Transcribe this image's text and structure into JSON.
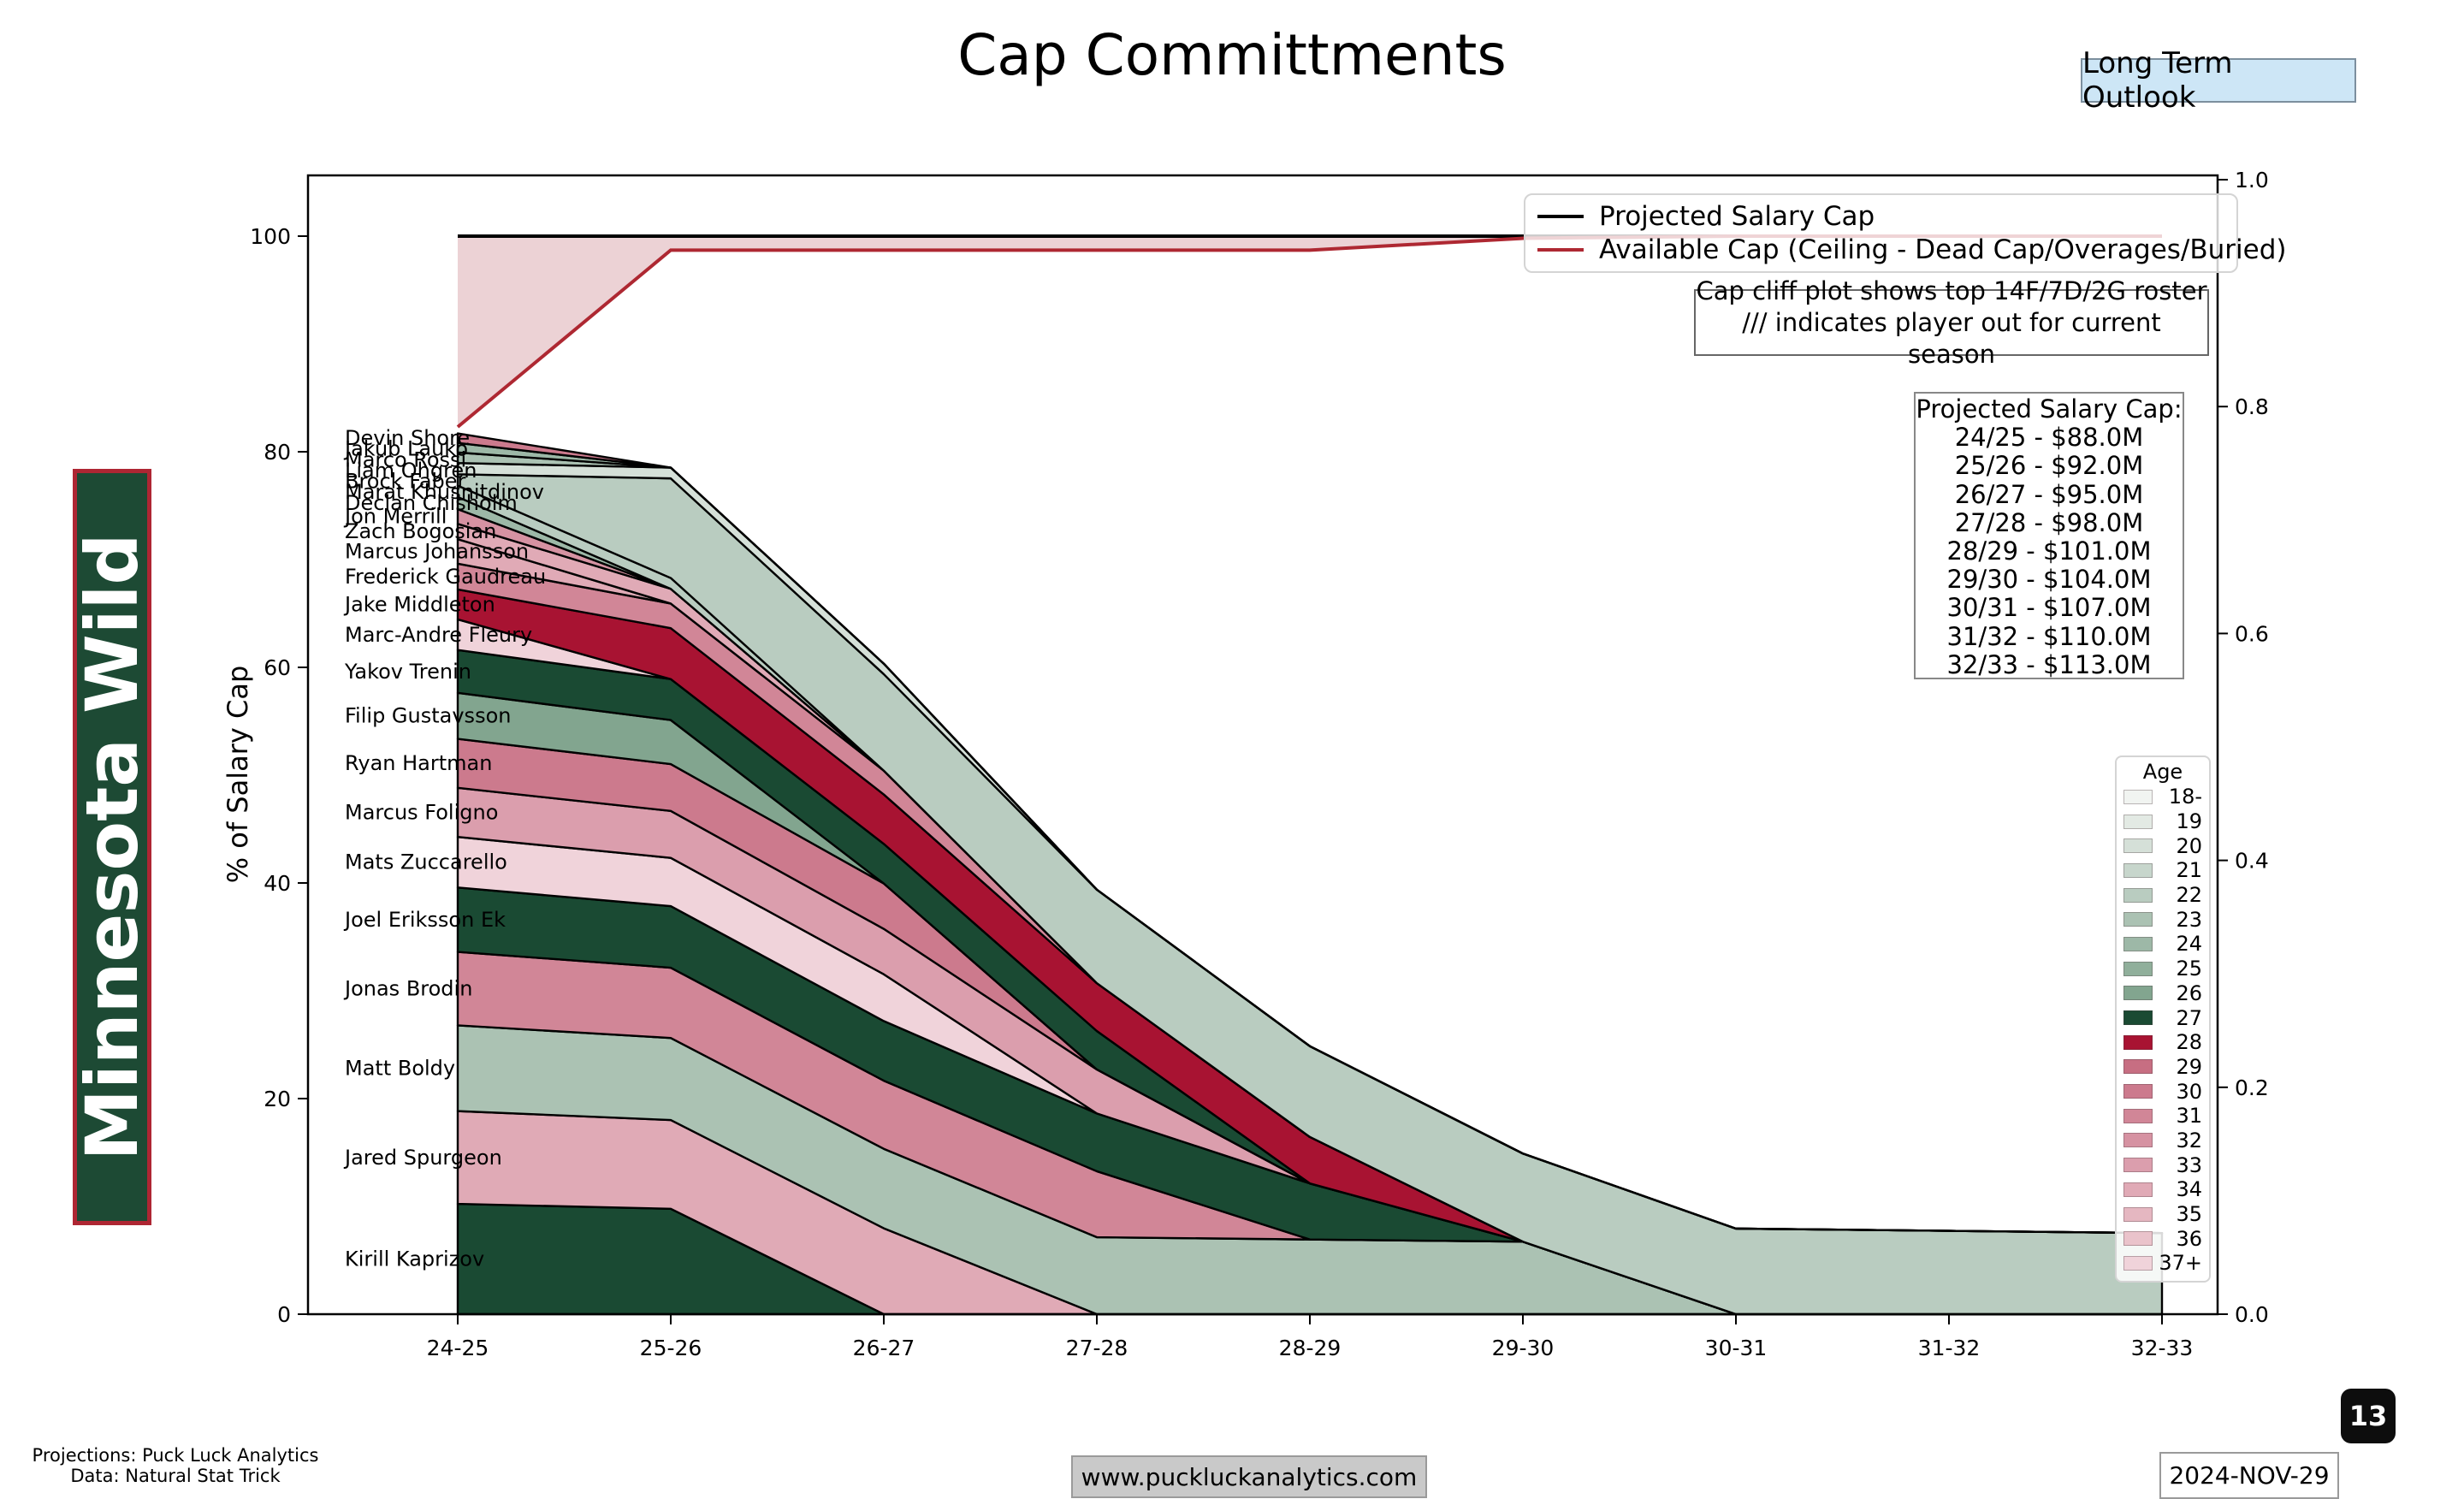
{
  "header": {
    "title": "Cap Committments",
    "outlook_label": "Long Term Outlook"
  },
  "banner": {
    "team": "Minnesota Wild",
    "bg_color": "#1d4a34",
    "border_color": "#ae2633"
  },
  "notes": {
    "line1": "Cap cliff plot shows top 14F/7D/2G roster",
    "line2": "/// indicates player out for current season"
  },
  "lines_legend": [
    {
      "label": "Projected Salary Cap",
      "color": "#000000"
    },
    {
      "label": "Available Cap (Ceiling - Dead Cap/Overages/Buried)",
      "color": "#ae2832"
    }
  ],
  "cap_box": {
    "title": "Projected Salary Cap:",
    "rows": [
      "24/25 - $88.0M",
      "25/26 - $92.0M",
      "26/27 - $95.0M",
      "27/28 - $98.0M",
      "28/29 - $101.0M",
      "29/30 - $104.0M",
      "30/31 - $107.0M",
      "31/32 - $110.0M",
      "32/33 - $113.0M"
    ]
  },
  "age_legend_title": "Age",
  "chart_data": {
    "type": "area",
    "title": "Cap Committments",
    "ylabel": "% of Salary Cap",
    "seasons": [
      "24-25",
      "25-26",
      "26-27",
      "27-28",
      "28-29",
      "29-30",
      "30-31",
      "31-32",
      "32-33"
    ],
    "yticks_left": [
      "0",
      "20",
      "40",
      "60",
      "80",
      "100"
    ],
    "yticks_right": [
      "0.0",
      "0.2",
      "0.4",
      "0.6",
      "0.8",
      "1.0"
    ],
    "ylim_left": [
      0,
      105.6
    ],
    "grid": false,
    "projected_cap_line": {
      "label": "Projected Salary Cap",
      "color": "#000000",
      "values_pct": [
        100,
        100,
        100,
        100,
        100,
        100,
        100,
        100,
        100
      ]
    },
    "available_cap_line": {
      "label": "Available Cap (Ceiling - Dead Cap/Overages/Buried)",
      "color": "#ae2832",
      "fill_color": "#ecd2d5",
      "values_pct": [
        82.3,
        98.7,
        98.7,
        98.7,
        98.7,
        99.8,
        100,
        100,
        100
      ]
    },
    "age_colors": [
      {
        "age": "18-",
        "color": "#f1f4f1"
      },
      {
        "age": "19",
        "color": "#e3eae4"
      },
      {
        "age": "20",
        "color": "#d5e0d8"
      },
      {
        "age": "21",
        "color": "#c7d6cc"
      },
      {
        "age": "22",
        "color": "#b9ccc0"
      },
      {
        "age": "23",
        "color": "#abc2b3"
      },
      {
        "age": "24",
        "color": "#9db8a7"
      },
      {
        "age": "25",
        "color": "#90af9b"
      },
      {
        "age": "26",
        "color": "#82a58f"
      },
      {
        "age": "27",
        "color": "#1a4a33"
      },
      {
        "age": "28",
        "color": "#a81332"
      },
      {
        "age": "29",
        "color": "#c76e82"
      },
      {
        "age": "30",
        "color": "#cc7a8d"
      },
      {
        "age": "31",
        "color": "#d18697"
      },
      {
        "age": "32",
        "color": "#d692a2"
      },
      {
        "age": "33",
        "color": "#db9ead"
      },
      {
        "age": "34",
        "color": "#e0aab6"
      },
      {
        "age": "35",
        "color": "#e5b7c1"
      },
      {
        "age": "36",
        "color": "#eac3cb"
      },
      {
        "age": "37+",
        "color": "#f0d3da"
      }
    ],
    "players_bottom_to_top": [
      {
        "name": "Kirill Kaprizov",
        "age": "27",
        "values_pct": [
          10.23,
          9.78,
          0,
          0,
          0,
          0,
          0,
          0,
          0
        ]
      },
      {
        "name": "Jared Spurgeon",
        "age": "34",
        "values_pct": [
          8.61,
          8.23,
          7.97,
          0,
          0,
          0,
          0,
          0,
          0
        ]
      },
      {
        "name": "Matt Boldy",
        "age": "23",
        "values_pct": [
          7.95,
          7.61,
          7.37,
          7.14,
          6.93,
          6.73,
          0,
          0,
          0
        ]
      },
      {
        "name": "Jonas Brodin",
        "age": "31",
        "values_pct": [
          6.82,
          6.52,
          6.32,
          6.12,
          0,
          0,
          0,
          0,
          0
        ]
      },
      {
        "name": "Joel Eriksson Ek",
        "age": "27",
        "values_pct": [
          5.97,
          5.71,
          5.53,
          5.36,
          5.2,
          0,
          0,
          0,
          0
        ]
      },
      {
        "name": "Mats Zuccarello",
        "age": "37+",
        "values_pct": [
          4.69,
          4.48,
          4.34,
          0,
          0,
          0,
          0,
          0,
          0
        ]
      },
      {
        "name": "Marcus Foligno",
        "age": "33",
        "values_pct": [
          4.55,
          4.35,
          4.21,
          4.08,
          0,
          0,
          0,
          0,
          0
        ]
      },
      {
        "name": "Ryan Hartman",
        "age": "30",
        "values_pct": [
          4.55,
          4.35,
          4.21,
          0,
          0,
          0,
          0,
          0,
          0
        ]
      },
      {
        "name": "Filip Gustavsson",
        "age": "26",
        "values_pct": [
          4.26,
          4.08,
          0,
          0,
          0,
          0,
          0,
          0,
          0
        ]
      },
      {
        "name": "Yakov Trenin",
        "age": "27",
        "values_pct": [
          3.98,
          3.8,
          3.68,
          3.57,
          0,
          0,
          0,
          0,
          0
        ]
      },
      {
        "name": "Marc-Andre Fleury",
        "age": "37+",
        "values_pct": [
          2.84,
          0,
          0,
          0,
          0,
          0,
          0,
          0,
          0
        ]
      },
      {
        "name": "Jake Middleton",
        "age": "28",
        "values_pct": [
          2.78,
          4.73,
          4.58,
          4.44,
          4.31,
          0,
          0,
          0,
          0
        ]
      },
      {
        "name": "Frederick Gaudreau",
        "age": "31",
        "values_pct": [
          2.39,
          2.28,
          2.21,
          0,
          0,
          0,
          0,
          0,
          0
        ]
      },
      {
        "name": "Marcus Johansson",
        "age": "34",
        "values_pct": [
          2.27,
          0,
          0,
          0,
          0,
          0,
          0,
          0,
          0
        ]
      },
      {
        "name": "Zach Bogosian",
        "age": "34",
        "values_pct": [
          1.42,
          1.36,
          0,
          0,
          0,
          0,
          0,
          0,
          0
        ]
      },
      {
        "name": "Jon Merrill",
        "age": "32",
        "values_pct": [
          1.36,
          0,
          0,
          0,
          0,
          0,
          0,
          0,
          0
        ]
      },
      {
        "name": "Declan Chisholm",
        "age": "24",
        "values_pct": [
          1.14,
          0,
          0,
          0,
          0,
          0,
          0,
          0,
          0
        ]
      },
      {
        "name": "Marat Khusnitdinov",
        "age": "22",
        "values_pct": [
          1.05,
          1.01,
          0,
          0,
          0,
          0,
          0,
          0,
          0
        ]
      },
      {
        "name": "Brock Faber",
        "age": "22",
        "values_pct": [
          1.05,
          9.24,
          8.95,
          8.67,
          8.42,
          8.17,
          7.94,
          7.73,
          7.52
        ]
      },
      {
        "name": "Liam Ohgren",
        "age": "20",
        "values_pct": [
          1.04,
          1.0,
          0.97,
          0,
          0,
          0,
          0,
          0,
          0
        ]
      },
      {
        "name": "Marco Rossi",
        "age": "23",
        "values_pct": [
          0.98,
          0,
          0,
          0,
          0,
          0,
          0,
          0,
          0
        ]
      },
      {
        "name": "Jakub Lauko",
        "age": "24",
        "values_pct": [
          0.89,
          0,
          0,
          0,
          0,
          0,
          0,
          0,
          0
        ]
      },
      {
        "name": "Devin Shore",
        "age": "30",
        "values_pct": [
          0.88,
          0,
          0,
          0,
          0,
          0,
          0,
          0,
          0
        ]
      }
    ]
  },
  "footer": {
    "credit1": "Projections: Puck Luck Analytics",
    "credit2": "Data: Natural Stat Trick",
    "url": "www.puckluckanalytics.com",
    "date": "2024-NOV-29",
    "page": "13"
  }
}
